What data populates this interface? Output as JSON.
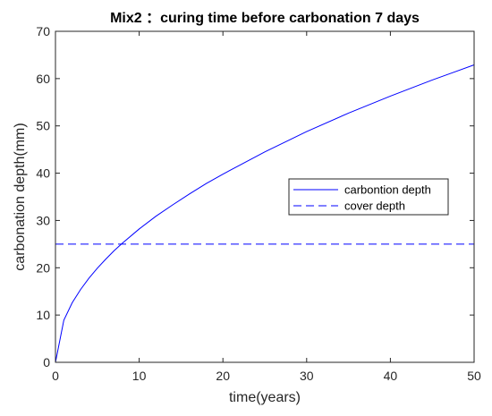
{
  "chart_data": {
    "type": "line",
    "title": "Mix2 ：curing time before carbonation 7 days",
    "xlabel": "time(years)",
    "ylabel": "carbonation depth(mm)",
    "xlim": [
      0,
      50
    ],
    "ylim": [
      0,
      70
    ],
    "xticks": [
      0,
      10,
      20,
      30,
      40,
      50
    ],
    "yticks": [
      0,
      10,
      20,
      30,
      40,
      50,
      60,
      70
    ],
    "grid": false,
    "legend_position": "right",
    "series": [
      {
        "name": "carbontion depth",
        "style": "solid",
        "color": "#0000ff",
        "x": [
          0,
          1,
          2,
          3,
          4,
          5,
          6,
          7,
          8,
          10,
          12,
          14,
          16,
          18,
          20,
          25,
          30,
          35,
          40,
          45,
          50
        ],
        "y": [
          0,
          8.9,
          12.6,
          15.4,
          17.8,
          19.9,
          21.8,
          23.6,
          25.2,
          28.2,
          30.9,
          33.3,
          35.6,
          37.8,
          39.8,
          44.5,
          48.8,
          52.7,
          56.3,
          59.7,
          62.9
        ]
      },
      {
        "name": "cover depth",
        "style": "dashed",
        "color": "#0000ff",
        "x": [
          0,
          50
        ],
        "y": [
          25,
          25
        ]
      }
    ]
  }
}
